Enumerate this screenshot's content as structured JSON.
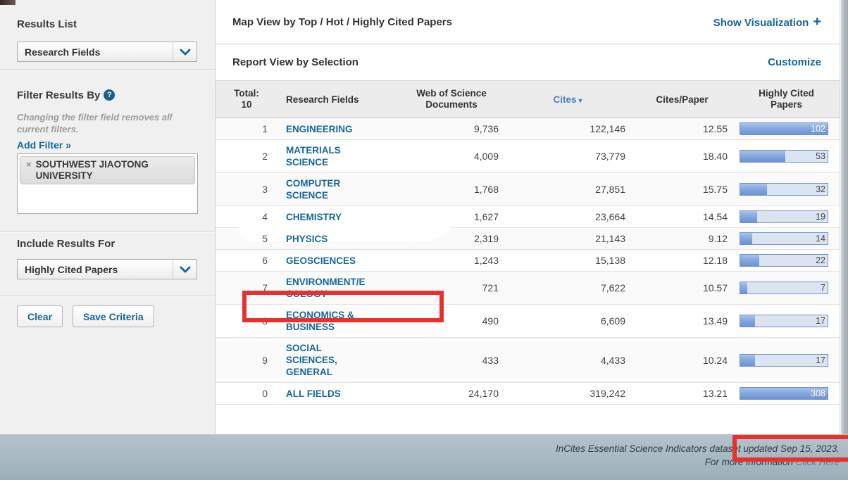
{
  "colors": {
    "accent_blue": "#15679a",
    "sorted_header_blue": "#4a7fb5",
    "bar_fill_blue": "#6b93d3",
    "annotation_red": "#e8312c",
    "footer_gray_blue": "#a6b5bf"
  },
  "sidebar": {
    "results_list_label": "Results List",
    "results_dropdown_value": "Research Fields",
    "filter_by_label": "Filter Results By",
    "help_icon_glyph": "?",
    "filter_note": "Changing the filter field removes all current filters.",
    "add_filter_label": "Add Filter »",
    "filter_tag_remove_glyph": "×",
    "filter_tag": "SOUTHWEST JIAOTONG UNIVERSITY",
    "include_results_label": "Include Results For",
    "include_dropdown_value": "Highly Cited Papers",
    "clear_button": "Clear",
    "save_button": "Save Criteria"
  },
  "header": {
    "map_view_title": "Map View by Top / Hot / Highly Cited Papers",
    "show_visualization_label": "Show Visualization",
    "show_visualization_plus": "+",
    "report_view_title": "Report View by Selection",
    "customize_label": "Customize"
  },
  "table": {
    "total_header": "Total:\n10",
    "col_field": "Research Fields",
    "col_docs": "Web of Science\nDocuments",
    "col_cites": "Cites",
    "sort_icon": "▾",
    "col_cites_per_paper": "Cites/Paper",
    "col_hcp": "Highly Cited\nPapers",
    "rows": [
      {
        "rank": "1",
        "field": "ENGINEERING",
        "docs": "9,736",
        "cites": "122,146",
        "cites_per_paper": "12.55",
        "hcp": "102",
        "bar_pct": 100
      },
      {
        "rank": "2",
        "field": "MATERIALS\nSCIENCE",
        "docs": "4,009",
        "cites": "73,779",
        "cites_per_paper": "18.40",
        "hcp": "53",
        "bar_pct": 52
      },
      {
        "rank": "3",
        "field": "COMPUTER\nSCIENCE",
        "docs": "1,768",
        "cites": "27,851",
        "cites_per_paper": "15.75",
        "hcp": "32",
        "bar_pct": 31
      },
      {
        "rank": "4",
        "field": "CHEMISTRY",
        "docs": "1,627",
        "cites": "23,664",
        "cites_per_paper": "14.54",
        "hcp": "19",
        "bar_pct": 19
      },
      {
        "rank": "5",
        "field": "PHYSICS",
        "docs": "2,319",
        "cites": "21,143",
        "cites_per_paper": "9.12",
        "hcp": "14",
        "bar_pct": 14
      },
      {
        "rank": "6",
        "field": "GEOSCIENCES",
        "docs": "1,243",
        "cites": "15,138",
        "cites_per_paper": "12.18",
        "hcp": "22",
        "bar_pct": 22
      },
      {
        "rank": "7",
        "field": "ENVIRONMENT/E\nCOLOGY",
        "docs": "721",
        "cites": "7,622",
        "cites_per_paper": "10.57",
        "hcp": "7",
        "bar_pct": 8
      },
      {
        "rank": "8",
        "field": "ECONOMICS &\nBUSINESS",
        "docs": "490",
        "cites": "6,609",
        "cites_per_paper": "13.49",
        "hcp": "17",
        "bar_pct": 17
      },
      {
        "rank": "9",
        "field": "SOCIAL\nSCIENCES,\nGENERAL",
        "docs": "433",
        "cites": "4,433",
        "cites_per_paper": "10.24",
        "hcp": "17",
        "bar_pct": 17
      },
      {
        "rank": "0",
        "field": "ALL FIELDS",
        "docs": "24,170",
        "cites": "319,242",
        "cites_per_paper": "13.21",
        "hcp": "308",
        "bar_pct": 100
      }
    ]
  },
  "footer": {
    "line1_prefix": "InCites Essential Science Indicators dataset",
    "line1_highlight": "updated Sep 15, 2023.",
    "line2_text": "For more information",
    "line2_link": "Click Here"
  }
}
